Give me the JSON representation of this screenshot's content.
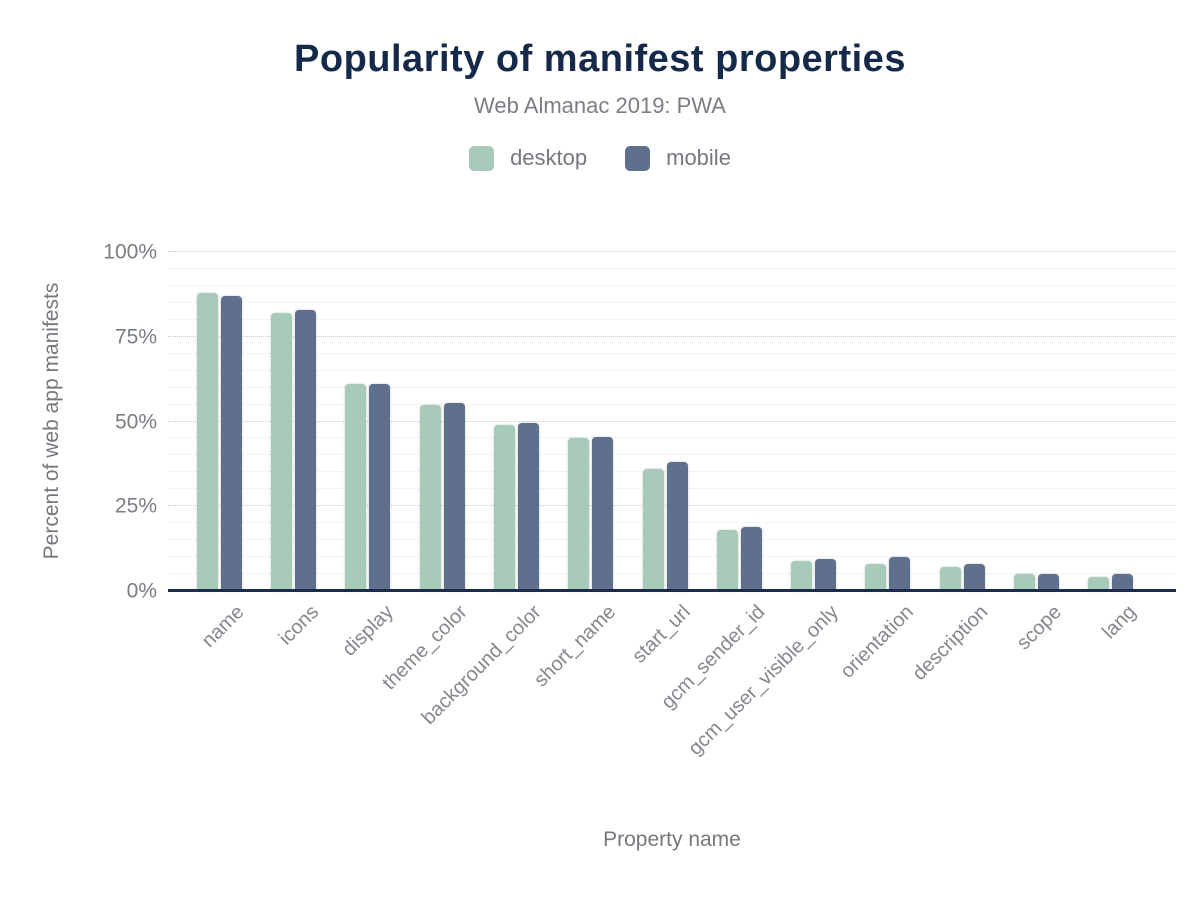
{
  "header": {
    "title": "Popularity of manifest properties",
    "subtitle": "Web Almanac 2019: PWA"
  },
  "chart_data": {
    "type": "bar",
    "title": "Popularity of manifest properties",
    "subtitle": "Web Almanac 2019: PWA",
    "xlabel": "Property name",
    "ylabel": "Percent of web app manifests",
    "ylim": [
      0,
      100
    ],
    "ytick_values": [
      0,
      25,
      50,
      75,
      100
    ],
    "ytick_labels": [
      "0%",
      "25%",
      "50%",
      "75%",
      "100%"
    ],
    "minor_gridline_step": 5,
    "grid": true,
    "legend_position": "top",
    "categories": [
      "name",
      "icons",
      "display",
      "theme_color",
      "background_color",
      "short_name",
      "start_url",
      "gcm_sender_id",
      "gcm_user_visible_only",
      "orientation",
      "description",
      "scope",
      "lang"
    ],
    "series": [
      {
        "name": "desktop",
        "color": "#a8cab9",
        "values": [
          88,
          82,
          61,
          55,
          49,
          45,
          36,
          18,
          9,
          8,
          7,
          5,
          4
        ]
      },
      {
        "name": "mobile",
        "color": "#5f708d",
        "values": [
          87,
          83,
          61,
          55.5,
          49.5,
          45.5,
          38,
          19,
          9.5,
          10,
          8,
          5,
          5
        ]
      }
    ],
    "colors": {
      "title": "#152a4a",
      "baseline": "#1b2b4d",
      "desktop": "#a8cab9",
      "mobile": "#5f708d"
    }
  }
}
